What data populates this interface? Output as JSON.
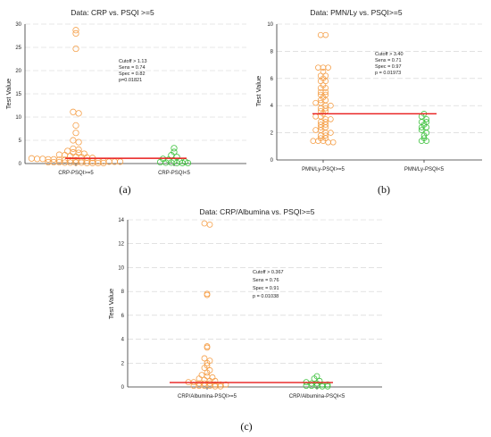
{
  "colors": {
    "group1": "#f5a04a",
    "group2": "#3fc23f",
    "cutoff_line": "#e81b1b",
    "grid": "#d0d0d0"
  },
  "chart_data": [
    {
      "type": "scatter",
      "panel_label": "(a)",
      "title": "Data: CRP  vs.  PSQI >=5",
      "ylabel": "Test Value",
      "xlabel": "",
      "ylim": [
        0,
        30
      ],
      "yticks": [
        "0",
        "5",
        "10",
        "15",
        "20",
        "25",
        "30"
      ],
      "categories": [
        "CRP-PSQI>=5",
        "CRP-PSQI<5"
      ],
      "cutoff": 1.13,
      "annotation": [
        "Cutoff > 1.13",
        "Sens = 0.74",
        "Spec = 0.82",
        "p=0.01821"
      ],
      "series": [
        {
          "values": [
            28.7,
            28.0,
            24.7,
            11.1,
            10.8,
            8.2,
            6.6,
            5.0,
            4.6,
            3.2,
            3.0,
            2.7,
            2.4,
            2.3,
            2.1,
            1.9,
            1.8,
            1.6,
            1.5,
            1.4,
            1.3,
            1.2,
            1.1,
            1.0,
            1.0,
            0.9,
            0.9,
            0.8,
            0.8,
            0.7,
            0.7,
            0.6,
            0.6,
            0.5,
            0.5,
            0.5,
            0.4,
            0.4,
            0.4,
            0.3,
            0.3,
            0.3,
            0.2,
            0.2,
            0.2,
            0.2,
            0.1,
            0.1,
            0.1,
            0.1
          ]
        },
        {
          "values": [
            3.3,
            2.5,
            1.8,
            1.4,
            1.0,
            0.8,
            0.6,
            0.5,
            0.4,
            0.3,
            0.2,
            0.2,
            0.1,
            0.1,
            0.1
          ]
        }
      ]
    },
    {
      "type": "scatter",
      "panel_label": "(b)",
      "title": "Data: PMN/Ly  vs.  PSQI>=5",
      "ylabel": "Test Value",
      "xlabel": "",
      "ylim": [
        0,
        10
      ],
      "yticks": [
        "0",
        "2",
        "4",
        "6",
        "8",
        "10"
      ],
      "categories": [
        "PMN/Ly-PSQI>=5",
        "PMN/Ly-PSQI<5"
      ],
      "cutoff": 3.4,
      "annotation": [
        "Cutoff > 3.40",
        "Sens = 0.71",
        "Spec = 0.97",
        "p = 0.01973"
      ],
      "series": [
        {
          "values": [
            9.2,
            9.2,
            6.8,
            6.8,
            6.8,
            6.5,
            6.2,
            6.2,
            6.0,
            5.8,
            5.8,
            5.5,
            5.3,
            5.3,
            5.0,
            5.0,
            4.8,
            4.8,
            4.6,
            4.4,
            4.4,
            4.2,
            4.2,
            4.0,
            4.0,
            3.8,
            3.8,
            3.6,
            3.6,
            3.4,
            3.2,
            3.2,
            3.0,
            3.0,
            2.8,
            2.8,
            2.6,
            2.6,
            2.4,
            2.4,
            2.2,
            2.2,
            2.0,
            2.0,
            1.8,
            1.8,
            1.6,
            1.6,
            1.4,
            1.4,
            1.4,
            1.3,
            1.3
          ]
        },
        {
          "values": [
            3.4,
            3.2,
            3.0,
            2.8,
            2.8,
            2.6,
            2.4,
            2.4,
            2.2,
            2.0,
            1.8,
            1.6,
            1.4,
            1.4
          ]
        }
      ]
    },
    {
      "type": "scatter",
      "panel_label": "(c)",
      "title": "Data: CRP/Albumina  vs.  PSQI>=5",
      "ylabel": "Test Value",
      "xlabel": "",
      "ylim": [
        0,
        14
      ],
      "yticks": [
        "0",
        "2",
        "4",
        "6",
        "8",
        "10",
        "12",
        "14"
      ],
      "categories": [
        "CRP/Albumina-PSQI>=5",
        "CRP/Albumina-PSQI<5"
      ],
      "cutoff": 0.367,
      "annotation": [
        "Cutoff >  0.367",
        "Sens = 0.76",
        "Spec = 0.91",
        "p = 0.01038"
      ],
      "series": [
        {
          "values": [
            13.7,
            13.6,
            7.8,
            7.7,
            3.4,
            3.3,
            2.4,
            2.2,
            2.0,
            1.8,
            1.6,
            1.4,
            1.2,
            1.0,
            0.9,
            0.8,
            0.7,
            0.6,
            0.5,
            0.5,
            0.4,
            0.4,
            0.3,
            0.3,
            0.3,
            0.2,
            0.2,
            0.2,
            0.1,
            0.1,
            0.1,
            0.1,
            0.05,
            0.05
          ]
        },
        {
          "values": [
            0.9,
            0.7,
            0.5,
            0.4,
            0.3,
            0.3,
            0.2,
            0.2,
            0.1,
            0.1,
            0.1,
            0.05,
            0.05
          ]
        }
      ]
    }
  ]
}
